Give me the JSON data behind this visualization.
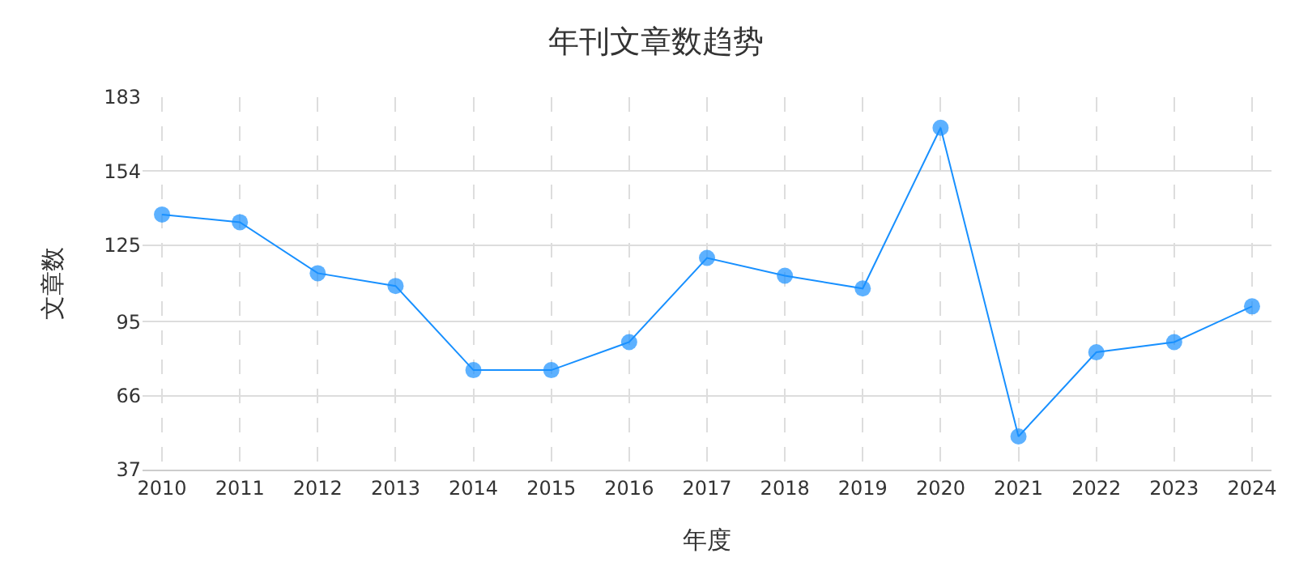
{
  "chart_data": {
    "type": "line",
    "title": "年刊文章数趋势",
    "xlabel": "年度",
    "ylabel": "文章数",
    "categories": [
      "2010",
      "2011",
      "2012",
      "2013",
      "2014",
      "2015",
      "2016",
      "2017",
      "2018",
      "2019",
      "2020",
      "2021",
      "2022",
      "2023",
      "2024"
    ],
    "series": [
      {
        "color": "#1890ff",
        "values": [
          137,
          134,
          114,
          109,
          76,
          76,
          87,
          120,
          113,
          108,
          171,
          50,
          83,
          87,
          101
        ]
      }
    ],
    "ylim": [
      37,
      183
    ],
    "yticks": [
      37,
      66,
      95,
      125,
      154,
      183
    ],
    "grid": true,
    "marker": "circle",
    "line_style": "solid"
  }
}
